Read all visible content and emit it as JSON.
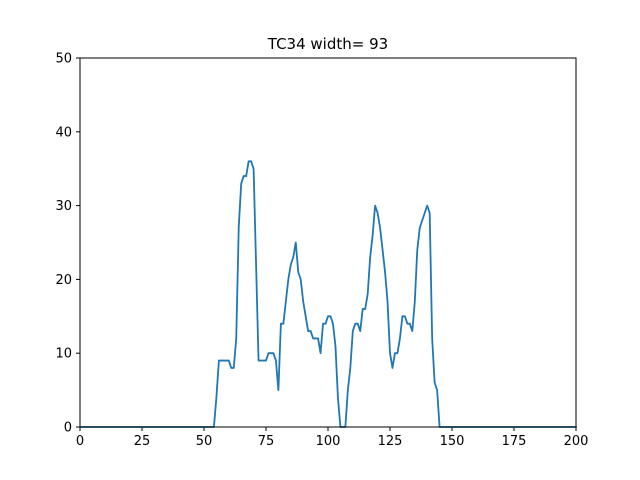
{
  "chart_data": {
    "type": "line",
    "title": "TC34 width= 93",
    "xlabel": "",
    "ylabel": "",
    "xlim": [
      0,
      200
    ],
    "ylim": [
      0,
      50
    ],
    "xticks": [
      0,
      25,
      50,
      75,
      100,
      125,
      150,
      175,
      200
    ],
    "yticks": [
      0,
      10,
      20,
      30,
      40,
      50
    ],
    "grid": false,
    "line_color": "#1f77b4",
    "series": [
      {
        "x": [
          0,
          54,
          55,
          56,
          57,
          58,
          59,
          60,
          61,
          62,
          63,
          64,
          65,
          66,
          67,
          68,
          69,
          70,
          71,
          72,
          73,
          74,
          75,
          76,
          77,
          78,
          79,
          80,
          81,
          82,
          83,
          84,
          85,
          86,
          87,
          88,
          89,
          90,
          91,
          92,
          93,
          94,
          95,
          96,
          97,
          98,
          99,
          100,
          101,
          102,
          103,
          104,
          105,
          106,
          107,
          108,
          109,
          110,
          111,
          112,
          113,
          114,
          115,
          116,
          117,
          118,
          119,
          120,
          121,
          122,
          123,
          124,
          125,
          126,
          127,
          128,
          129,
          130,
          131,
          132,
          133,
          134,
          135,
          136,
          137,
          138,
          139,
          140,
          141,
          142,
          143,
          144,
          145,
          146,
          147,
          200
        ],
        "values": [
          0,
          0,
          4,
          9,
          9,
          9,
          9,
          9,
          8,
          8,
          12,
          27,
          33,
          34,
          34,
          36,
          36,
          35,
          22,
          9,
          9,
          9,
          9,
          10,
          10,
          10,
          9,
          5,
          14,
          14,
          17,
          20,
          22,
          23,
          25,
          21,
          20,
          17,
          15,
          13,
          13,
          12,
          12,
          12,
          10,
          14,
          14,
          15,
          15,
          14,
          11,
          4,
          0,
          0,
          0,
          5,
          8,
          13,
          14,
          14,
          13,
          16,
          16,
          18,
          23,
          26,
          30,
          29,
          27,
          24,
          21,
          17,
          10,
          8,
          10,
          10,
          12,
          15,
          15,
          14,
          14,
          13,
          17,
          24,
          27,
          28,
          29,
          30,
          29,
          12,
          6,
          5,
          0,
          0,
          0,
          0
        ]
      }
    ]
  }
}
